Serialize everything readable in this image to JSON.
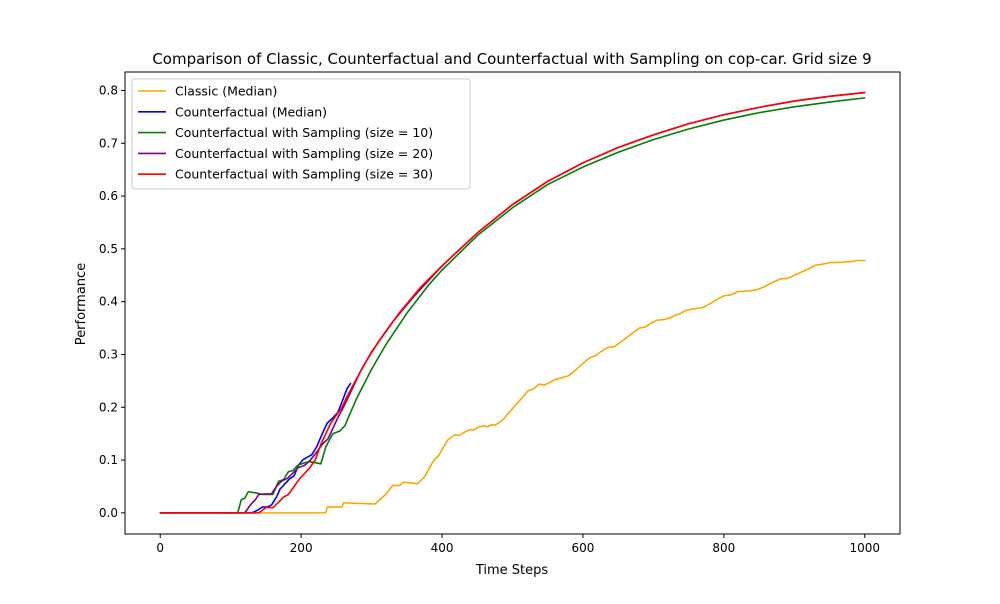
{
  "chart_data": {
    "type": "line",
    "title": "Comparison of Classic, Counterfactual and Counterfactual with Sampling on cop-car. Grid size 9",
    "xlabel": "Time Steps",
    "ylabel": "Performance",
    "xlim": [
      -50,
      1050
    ],
    "ylim": [
      -0.04,
      0.835
    ],
    "xticks": [
      0,
      200,
      400,
      600,
      800,
      1000
    ],
    "yticks": [
      0.0,
      0.1,
      0.2,
      0.3,
      0.4,
      0.5,
      0.6,
      0.7,
      0.8
    ],
    "xtick_labels": [
      "0",
      "200",
      "400",
      "600",
      "800",
      "1000"
    ],
    "ytick_labels": [
      "0.0",
      "0.1",
      "0.2",
      "0.3",
      "0.4",
      "0.5",
      "0.6",
      "0.7",
      "0.8"
    ],
    "grid": false,
    "legend_position": "top-left",
    "series": [
      {
        "name": "Classic (Median)",
        "color": "#ffa500",
        "points": [
          [
            0,
            0
          ],
          [
            100,
            0
          ],
          [
            200,
            0
          ],
          [
            235,
            0
          ],
          [
            237,
            0.011
          ],
          [
            250,
            0.011
          ],
          [
            258,
            0.011
          ],
          [
            260,
            0.019
          ],
          [
            280,
            0.018
          ],
          [
            305,
            0.017
          ],
          [
            320,
            0.035
          ],
          [
            330,
            0.052
          ],
          [
            340,
            0.052
          ],
          [
            345,
            0.058
          ],
          [
            355,
            0.057
          ],
          [
            365,
            0.055
          ],
          [
            375,
            0.068
          ],
          [
            385,
            0.092
          ],
          [
            390,
            0.102
          ],
          [
            395,
            0.108
          ],
          [
            400,
            0.12
          ],
          [
            408,
            0.138
          ],
          [
            418,
            0.148
          ],
          [
            425,
            0.147
          ],
          [
            432,
            0.153
          ],
          [
            440,
            0.158
          ],
          [
            445,
            0.157
          ],
          [
            452,
            0.163
          ],
          [
            460,
            0.165
          ],
          [
            465,
            0.163
          ],
          [
            470,
            0.167
          ],
          [
            475,
            0.166
          ],
          [
            480,
            0.17
          ],
          [
            487,
            0.177
          ],
          [
            495,
            0.19
          ],
          [
            505,
            0.205
          ],
          [
            515,
            0.22
          ],
          [
            522,
            0.231
          ],
          [
            530,
            0.235
          ],
          [
            538,
            0.244
          ],
          [
            545,
            0.242
          ],
          [
            553,
            0.247
          ],
          [
            560,
            0.252
          ],
          [
            570,
            0.256
          ],
          [
            580,
            0.26
          ],
          [
            590,
            0.271
          ],
          [
            600,
            0.283
          ],
          [
            610,
            0.294
          ],
          [
            618,
            0.298
          ],
          [
            625,
            0.305
          ],
          [
            635,
            0.313
          ],
          [
            645,
            0.315
          ],
          [
            655,
            0.325
          ],
          [
            670,
            0.34
          ],
          [
            680,
            0.35
          ],
          [
            688,
            0.352
          ],
          [
            695,
            0.358
          ],
          [
            705,
            0.365
          ],
          [
            715,
            0.366
          ],
          [
            725,
            0.37
          ],
          [
            730,
            0.374
          ],
          [
            738,
            0.377
          ],
          [
            745,
            0.383
          ],
          [
            755,
            0.386
          ],
          [
            770,
            0.389
          ],
          [
            780,
            0.396
          ],
          [
            790,
            0.404
          ],
          [
            800,
            0.411
          ],
          [
            810,
            0.413
          ],
          [
            820,
            0.419
          ],
          [
            830,
            0.42
          ],
          [
            840,
            0.421
          ],
          [
            850,
            0.424
          ],
          [
            860,
            0.43
          ],
          [
            870,
            0.437
          ],
          [
            880,
            0.443
          ],
          [
            890,
            0.444
          ],
          [
            900,
            0.45
          ],
          [
            910,
            0.456
          ],
          [
            920,
            0.462
          ],
          [
            930,
            0.469
          ],
          [
            940,
            0.471
          ],
          [
            950,
            0.474
          ],
          [
            960,
            0.474
          ],
          [
            970,
            0.475
          ],
          [
            980,
            0.476
          ],
          [
            990,
            0.478
          ],
          [
            1000,
            0.478
          ]
        ]
      },
      {
        "name": "Counterfactual (Median)",
        "color": "#0000ff",
        "points": [
          [
            0,
            0
          ],
          [
            100,
            0
          ],
          [
            130,
            0
          ],
          [
            138,
            0.005
          ],
          [
            145,
            0.011
          ],
          [
            152,
            0.011
          ],
          [
            158,
            0.015
          ],
          [
            165,
            0.03
          ],
          [
            170,
            0.045
          ],
          [
            177,
            0.055
          ],
          [
            184,
            0.065
          ],
          [
            190,
            0.07
          ],
          [
            196,
            0.09
          ],
          [
            202,
            0.1
          ],
          [
            208,
            0.105
          ],
          [
            215,
            0.11
          ],
          [
            222,
            0.125
          ],
          [
            230,
            0.15
          ],
          [
            237,
            0.17
          ],
          [
            245,
            0.18
          ],
          [
            252,
            0.19
          ],
          [
            258,
            0.21
          ],
          [
            265,
            0.235
          ],
          [
            270,
            0.245
          ]
        ]
      },
      {
        "name": "Counterfactual with Sampling (size = 10)",
        "color": "#008000",
        "points": [
          [
            0,
            0
          ],
          [
            100,
            0
          ],
          [
            110,
            0
          ],
          [
            115,
            0.025
          ],
          [
            120,
            0.028
          ],
          [
            125,
            0.04
          ],
          [
            135,
            0.038
          ],
          [
            145,
            0.035
          ],
          [
            160,
            0.035
          ],
          [
            168,
            0.06
          ],
          [
            175,
            0.063
          ],
          [
            182,
            0.078
          ],
          [
            188,
            0.08
          ],
          [
            195,
            0.09
          ],
          [
            205,
            0.095
          ],
          [
            212,
            0.097
          ],
          [
            220,
            0.095
          ],
          [
            228,
            0.093
          ],
          [
            235,
            0.125
          ],
          [
            245,
            0.15
          ],
          [
            255,
            0.155
          ],
          [
            262,
            0.165
          ],
          [
            270,
            0.19
          ],
          [
            280,
            0.22
          ],
          [
            300,
            0.272
          ],
          [
            320,
            0.318
          ],
          [
            350,
            0.378
          ],
          [
            380,
            0.43
          ],
          [
            400,
            0.46
          ],
          [
            450,
            0.525
          ],
          [
            500,
            0.578
          ],
          [
            550,
            0.622
          ],
          [
            600,
            0.655
          ],
          [
            650,
            0.683
          ],
          [
            700,
            0.707
          ],
          [
            750,
            0.727
          ],
          [
            800,
            0.744
          ],
          [
            850,
            0.758
          ],
          [
            900,
            0.769
          ],
          [
            950,
            0.778
          ],
          [
            1000,
            0.786
          ]
        ]
      },
      {
        "name": "Counterfactual with Sampling (size = 20)",
        "color": "#800080",
        "points": [
          [
            0,
            0
          ],
          [
            100,
            0
          ],
          [
            120,
            0
          ],
          [
            128,
            0.015
          ],
          [
            135,
            0.025
          ],
          [
            140,
            0.035
          ],
          [
            150,
            0.036
          ],
          [
            158,
            0.036
          ],
          [
            165,
            0.05
          ],
          [
            172,
            0.06
          ],
          [
            180,
            0.065
          ],
          [
            188,
            0.075
          ],
          [
            195,
            0.085
          ],
          [
            205,
            0.09
          ],
          [
            213,
            0.1
          ],
          [
            222,
            0.115
          ],
          [
            230,
            0.13
          ],
          [
            238,
            0.14
          ],
          [
            245,
            0.16
          ],
          [
            252,
            0.18
          ],
          [
            260,
            0.2
          ],
          [
            270,
            0.228
          ],
          [
            285,
            0.27
          ],
          [
            300,
            0.305
          ],
          [
            330,
            0.362
          ],
          [
            360,
            0.41
          ],
          [
            400,
            0.468
          ],
          [
            450,
            0.53
          ],
          [
            500,
            0.584
          ],
          [
            550,
            0.628
          ],
          [
            600,
            0.663
          ],
          [
            650,
            0.692
          ],
          [
            700,
            0.716
          ],
          [
            750,
            0.737
          ],
          [
            800,
            0.754
          ],
          [
            850,
            0.768
          ],
          [
            900,
            0.78
          ],
          [
            950,
            0.789
          ],
          [
            1000,
            0.796
          ]
        ]
      },
      {
        "name": "Counterfactual with Sampling (size = 30)",
        "color": "#ff0000",
        "points": [
          [
            0,
            0
          ],
          [
            100,
            0
          ],
          [
            140,
            0
          ],
          [
            145,
            0.005
          ],
          [
            150,
            0.01
          ],
          [
            160,
            0.01
          ],
          [
            168,
            0.02
          ],
          [
            175,
            0.03
          ],
          [
            182,
            0.035
          ],
          [
            190,
            0.05
          ],
          [
            198,
            0.065
          ],
          [
            205,
            0.075
          ],
          [
            212,
            0.085
          ],
          [
            220,
            0.1
          ],
          [
            228,
            0.13
          ],
          [
            235,
            0.15
          ],
          [
            242,
            0.17
          ],
          [
            250,
            0.185
          ],
          [
            258,
            0.2
          ],
          [
            265,
            0.22
          ],
          [
            275,
            0.245
          ],
          [
            290,
            0.282
          ],
          [
            310,
            0.325
          ],
          [
            340,
            0.38
          ],
          [
            370,
            0.428
          ],
          [
            400,
            0.468
          ],
          [
            450,
            0.53
          ],
          [
            500,
            0.584
          ],
          [
            550,
            0.628
          ],
          [
            600,
            0.663
          ],
          [
            650,
            0.692
          ],
          [
            700,
            0.716
          ],
          [
            750,
            0.737
          ],
          [
            800,
            0.754
          ],
          [
            850,
            0.768
          ],
          [
            900,
            0.78
          ],
          [
            950,
            0.789
          ],
          [
            1000,
            0.796
          ]
        ]
      }
    ]
  }
}
